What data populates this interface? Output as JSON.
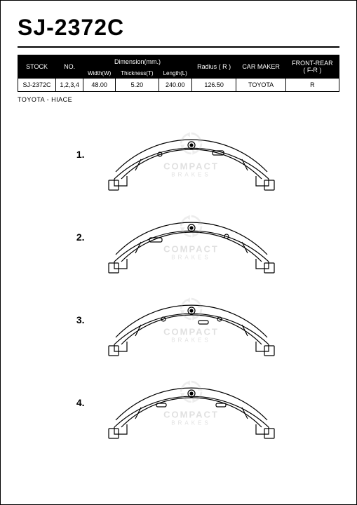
{
  "title": "SJ-2372C",
  "table": {
    "headers": {
      "stock": "STOCK",
      "no": "NO.",
      "dimension": "Dimension(mm.)",
      "width": "Width(W)",
      "thickness": "Thickness(T)",
      "length": "Length(L)",
      "radius": "Radius ( R )",
      "carmaker": "CAR MAKER",
      "frontrear": "FRONT-REAR",
      "fr": "( F-R )"
    },
    "row": {
      "stock": "SJ-2372C",
      "no": "1,2,3,4",
      "width": "48.00",
      "thickness": "5.20",
      "length": "240.00",
      "radius": "126.50",
      "carmaker": "TOYOTA",
      "frontrear": "R"
    }
  },
  "subtitle": "TOYOTA - HIACE",
  "diagram_numbers": [
    "1.",
    "2.",
    "3.",
    "4."
  ],
  "watermark": {
    "line1": "COMPACT",
    "line2": "BRAKES"
  },
  "colors": {
    "stroke": "#000000",
    "bg": "#ffffff",
    "header_bg": "#000000",
    "header_fg": "#ffffff",
    "wm": "#b8b8b8"
  }
}
